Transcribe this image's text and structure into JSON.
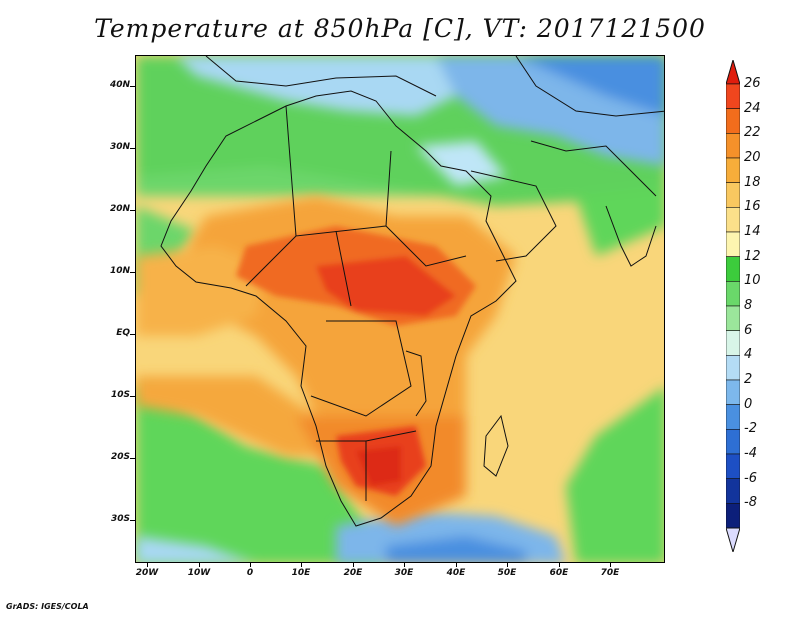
{
  "title": "Temperature at 850hPa [C], VT: 2017121500",
  "lat_labels": [
    "40N",
    "30N",
    "20N",
    "10N",
    "EQ",
    "10S",
    "20S",
    "30S"
  ],
  "lon_labels": [
    "20W",
    "10W",
    "0",
    "10E",
    "20E",
    "30E",
    "40E",
    "50E",
    "60E",
    "70E"
  ],
  "colorbar": {
    "labels": [
      "26",
      "24",
      "22",
      "20",
      "18",
      "16",
      "14",
      "12",
      "10",
      "8",
      "6",
      "4",
      "2",
      "0",
      "-2",
      "-4",
      "-6",
      "-8"
    ],
    "colors": [
      "#e01d0d",
      "#f0461e",
      "#f26d1c",
      "#f5912a",
      "#f7ad3a",
      "#f9c860",
      "#fbe08a",
      "#fdf5b0",
      "#3ccc3c",
      "#6ad86a",
      "#9be69b",
      "#d8f5e8",
      "#b4dcf5",
      "#7db8ec",
      "#4a90e0",
      "#2e6fd4",
      "#1d4fc4",
      "#12349c",
      "#0c1f7a",
      "#dcdcff"
    ]
  },
  "credit": "GrADS: IGES/COLA",
  "colors": {
    "red": "#e0301a",
    "orange": "#f28a2a",
    "yellow": "#f9d67a",
    "green": "#5fd65a",
    "lightblue": "#a9d8f3",
    "blue": "#4a8fe0"
  }
}
